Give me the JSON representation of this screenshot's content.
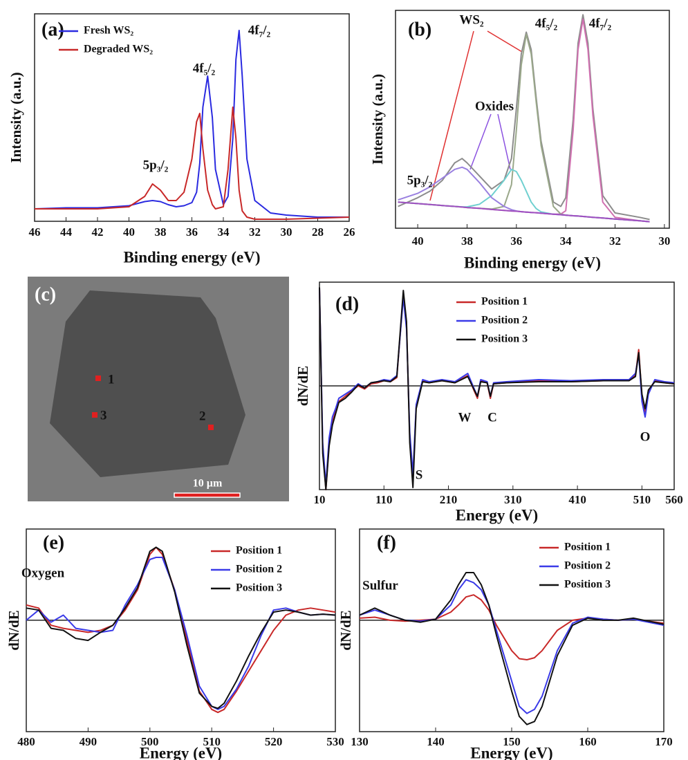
{
  "chart_data": [
    {
      "type": "line",
      "panel": "(a)",
      "xlabel": "Binding energy (eV)",
      "ylabel": "Intensity (a.u.)",
      "x": [
        46,
        44,
        42,
        40,
        39,
        38.5,
        38,
        37.5,
        37,
        36.5,
        36,
        35.7,
        35.5,
        35.3,
        35,
        34.7,
        34.5,
        34,
        33.7,
        33.4,
        33.2,
        33,
        32.8,
        32.5,
        32,
        31,
        30,
        28,
        26
      ],
      "xlim": [
        46,
        26
      ],
      "xticks": [
        46,
        44,
        42,
        40,
        38,
        36,
        34,
        32,
        30,
        28,
        26
      ],
      "ylim": [
        0,
        100
      ],
      "legend": "upper left",
      "series": [
        {
          "name": "Fresh WS₂",
          "color": "#2a2ae0",
          "values": [
            6,
            6.5,
            6.5,
            7.5,
            9.5,
            10,
            9.5,
            8,
            7,
            7.5,
            9,
            14,
            28,
            55,
            70,
            50,
            25,
            8,
            12,
            40,
            78,
            92,
            70,
            30,
            10,
            4,
            3,
            2,
            2
          ]
        },
        {
          "name": "Degraded WS₂",
          "color": "#c82828",
          "values": [
            6,
            6,
            6,
            7,
            12,
            18,
            15,
            10,
            10,
            14,
            30,
            48,
            52,
            35,
            15,
            8,
            6,
            7,
            25,
            55,
            40,
            15,
            5,
            2,
            1,
            1,
            1,
            1.5,
            2
          ]
        }
      ],
      "annotations": [
        "4f₇/₂",
        "4f₅/₂",
        "5p₃/₂"
      ]
    },
    {
      "type": "line",
      "panel": "(b)",
      "xlabel": "Binding energy (eV)",
      "ylabel": "Intensity (a.u.)",
      "x": [
        40.8,
        40,
        39.5,
        39,
        38.5,
        38.2,
        38,
        37.5,
        37,
        36.5,
        36.2,
        36,
        35.8,
        35.6,
        35.4,
        35.2,
        35,
        34.5,
        34.2,
        34,
        33.7,
        33.5,
        33.3,
        33.1,
        32.9,
        32.5,
        32,
        31,
        30.6
      ],
      "xlim": [
        40.9,
        29.8
      ],
      "xticks": [
        40,
        38,
        36,
        34,
        32,
        30
      ],
      "ylim": [
        0,
        100
      ],
      "series": [
        {
          "color": "#8c8c8c",
          "values": [
            10,
            14,
            17,
            22,
            30,
            32,
            30,
            24,
            18,
            22,
            32,
            55,
            80,
            90,
            82,
            60,
            40,
            12,
            10,
            14,
            50,
            85,
            98,
            85,
            55,
            15,
            7,
            5,
            4
          ]
        },
        {
          "color": "#d070b0",
          "values": [
            12,
            11.3,
            10.9,
            10.4,
            10,
            9.7,
            9.5,
            9.1,
            8.6,
            8.2,
            7.9,
            7.8,
            7.6,
            7.4,
            7.2,
            7.1,
            6.9,
            6.4,
            6.5,
            8,
            45,
            82,
            96,
            82,
            52,
            12,
            5,
            3.4,
            3
          ]
        },
        {
          "color": "#9aa88a",
          "values": [
            12,
            11.3,
            10.9,
            10.4,
            10,
            9.7,
            9.5,
            9.1,
            8.8,
            10,
            20,
            45,
            75,
            89,
            80,
            58,
            38,
            10,
            6.5,
            6,
            5.7,
            5.6,
            5.4,
            5.2,
            5,
            4.7,
            4.2,
            3.4,
            3
          ]
        },
        {
          "color": "#70d0d0",
          "values": [
            12,
            11.3,
            10.9,
            10.4,
            10,
            9.8,
            9.8,
            11,
            15,
            22,
            27,
            26,
            22,
            17,
            12,
            9,
            7.5,
            6.4,
            6.2,
            6,
            5.7,
            5.6,
            5.4,
            5.2,
            5,
            4.7,
            4.2,
            3.4,
            3
          ]
        },
        {
          "color": "#9a80e0",
          "values": [
            13,
            16,
            19,
            23,
            27,
            28,
            27,
            21,
            14,
            10,
            8.5,
            7.9,
            7.6,
            7.4,
            7.2,
            7.1,
            6.9,
            6.4,
            6.2,
            6,
            5.7,
            5.6,
            5.4,
            5.2,
            5,
            4.7,
            4.2,
            3.4,
            3
          ]
        },
        {
          "color": "#a050c0",
          "values": [
            12,
            11.3,
            10.9,
            10.4,
            10,
            9.7,
            9.5,
            9.1,
            8.6,
            8.2,
            7.9,
            7.8,
            7.6,
            7.4,
            7.2,
            7.1,
            6.9,
            6.4,
            6.2,
            6,
            5.7,
            5.6,
            5.4,
            5.2,
            5,
            4.7,
            4.2,
            3.4,
            3
          ]
        }
      ],
      "annotations": [
        "WS₂",
        "4f₅/₂",
        "4f₇/₂",
        "Oxides",
        "5p₃/₂"
      ]
    },
    {
      "type": "line",
      "panel": "(d)",
      "xlabel": "Energy (eV)",
      "ylabel": "dN/dE",
      "zero_line": true,
      "legend": "upper right",
      "x": [
        10,
        15,
        20,
        25,
        30,
        35,
        40,
        50,
        60,
        70,
        80,
        90,
        100,
        110,
        120,
        130,
        140,
        145,
        150,
        155,
        160,
        170,
        180,
        200,
        220,
        240,
        250,
        255,
        260,
        270,
        275,
        280,
        300,
        350,
        400,
        450,
        490,
        500,
        505,
        510,
        515,
        520,
        530,
        545,
        560
      ],
      "xlim": [
        10,
        560
      ],
      "xticks": [
        10,
        110,
        210,
        310,
        410,
        510,
        560
      ],
      "ylim": [
        -100,
        100
      ],
      "series": [
        {
          "name": "Position 1",
          "color": "#c82828",
          "values": [
            95,
            -60,
            -100,
            -55,
            -35,
            -25,
            -15,
            -10,
            -5,
            0,
            -3,
            2,
            3,
            5,
            4,
            8,
            88,
            60,
            -50,
            -90,
            -20,
            5,
            3,
            5,
            3,
            10,
            -5,
            -12,
            5,
            3,
            -12,
            2,
            3,
            5,
            4,
            5,
            5,
            10,
            35,
            -10,
            -25,
            -5,
            5,
            3,
            2
          ]
        },
        {
          "name": "Position 2",
          "color": "#3a3ae8",
          "values": [
            95,
            -55,
            -95,
            -50,
            -30,
            -22,
            -12,
            -8,
            -4,
            2,
            -2,
            3,
            4,
            6,
            5,
            10,
            85,
            55,
            -45,
            -85,
            -18,
            6,
            4,
            6,
            4,
            12,
            -3,
            -10,
            6,
            4,
            -10,
            3,
            4,
            6,
            5,
            6,
            6,
            12,
            30,
            -15,
            -30,
            -8,
            6,
            4,
            3
          ]
        },
        {
          "name": "Position 3",
          "color": "#111111",
          "values": [
            95,
            -65,
            -100,
            -58,
            -38,
            -27,
            -16,
            -12,
            -6,
            1,
            -2,
            3,
            4,
            5,
            4,
            9,
            92,
            62,
            -55,
            -98,
            -22,
            4,
            3,
            5,
            3,
            9,
            -4,
            -10,
            4,
            3,
            -10,
            2,
            3,
            4,
            4,
            5,
            5,
            9,
            32,
            -8,
            -22,
            -4,
            4,
            3,
            2
          ]
        }
      ],
      "annotations": [
        "S",
        "W",
        "C",
        "O"
      ]
    },
    {
      "type": "line",
      "panel": "(e)",
      "xlabel": "Energy (eV)",
      "ylabel": "dN/dE",
      "zero_line": true,
      "legend": "upper right",
      "x": [
        480,
        482,
        484,
        486,
        488,
        490,
        492,
        494,
        496,
        498,
        500,
        501,
        502,
        504,
        506,
        508,
        510,
        511,
        512,
        514,
        516,
        518,
        520,
        522,
        524,
        526,
        528,
        530
      ],
      "xlim": [
        480,
        530
      ],
      "xticks": [
        480,
        490,
        500,
        510,
        520,
        530
      ],
      "ylim": [
        -110,
        90
      ],
      "series": [
        {
          "name": "Position 1",
          "color": "#c82828",
          "values": [
            15,
            12,
            -5,
            -8,
            -10,
            -12,
            -10,
            -5,
            10,
            30,
            65,
            72,
            65,
            30,
            -20,
            -70,
            -88,
            -91,
            -88,
            -70,
            -50,
            -30,
            -10,
            5,
            10,
            12,
            10,
            8
          ]
        },
        {
          "name": "Position 2",
          "color": "#3a3ae8",
          "values": [
            0,
            10,
            -2,
            5,
            -8,
            -10,
            -12,
            -10,
            15,
            35,
            60,
            62,
            62,
            30,
            -15,
            -65,
            -85,
            -88,
            -85,
            -68,
            -45,
            -15,
            10,
            12,
            8,
            5,
            6,
            5
          ]
        },
        {
          "name": "Position 3",
          "color": "#111111",
          "values": [
            12,
            10,
            -8,
            -10,
            -18,
            -20,
            -12,
            -5,
            12,
            32,
            68,
            72,
            68,
            28,
            -25,
            -72,
            -85,
            -87,
            -82,
            -60,
            -35,
            -12,
            8,
            10,
            8,
            5,
            6,
            5
          ]
        }
      ],
      "annotations": [
        "Oxygen"
      ]
    },
    {
      "type": "line",
      "panel": "(f)",
      "xlabel": "Energy (eV)",
      "ylabel": "dN/dE",
      "zero_line": true,
      "legend": "upper right",
      "x": [
        130,
        132,
        134,
        136,
        138,
        140,
        142,
        143,
        144,
        145,
        146,
        147,
        148,
        150,
        151,
        152,
        153,
        154,
        156,
        158,
        160,
        162,
        164,
        166,
        168,
        170
      ],
      "xlim": [
        130,
        170
      ],
      "xticks": [
        130,
        140,
        150,
        160,
        170
      ],
      "ylim": [
        -110,
        90
      ],
      "series": [
        {
          "name": "Position 1",
          "color": "#c82828",
          "values": [
            2,
            3,
            0,
            -1,
            0,
            1,
            8,
            15,
            23,
            25,
            20,
            10,
            -5,
            -30,
            -38,
            -39,
            -37,
            -30,
            -10,
            0,
            2,
            1,
            0,
            1,
            -1,
            -3
          ]
        },
        {
          "name": "Position 2",
          "color": "#3a3ae8",
          "values": [
            5,
            10,
            5,
            0,
            -1,
            1,
            15,
            30,
            40,
            37,
            30,
            15,
            -10,
            -60,
            -85,
            -92,
            -88,
            -75,
            -30,
            -3,
            3,
            1,
            0,
            1,
            -2,
            -5
          ]
        },
        {
          "name": "Position 3",
          "color": "#111111",
          "values": [
            5,
            12,
            5,
            0,
            -2,
            1,
            20,
            35,
            47,
            47,
            35,
            15,
            -15,
            -70,
            -95,
            -103,
            -100,
            -85,
            -35,
            -5,
            2,
            0,
            0,
            2,
            -1,
            -4
          ]
        }
      ],
      "annotations": [
        "Sulfur"
      ]
    }
  ],
  "image": {
    "panel": "(c)",
    "points": [
      "1",
      "2",
      "3"
    ],
    "scale_bar": "10 µm"
  }
}
